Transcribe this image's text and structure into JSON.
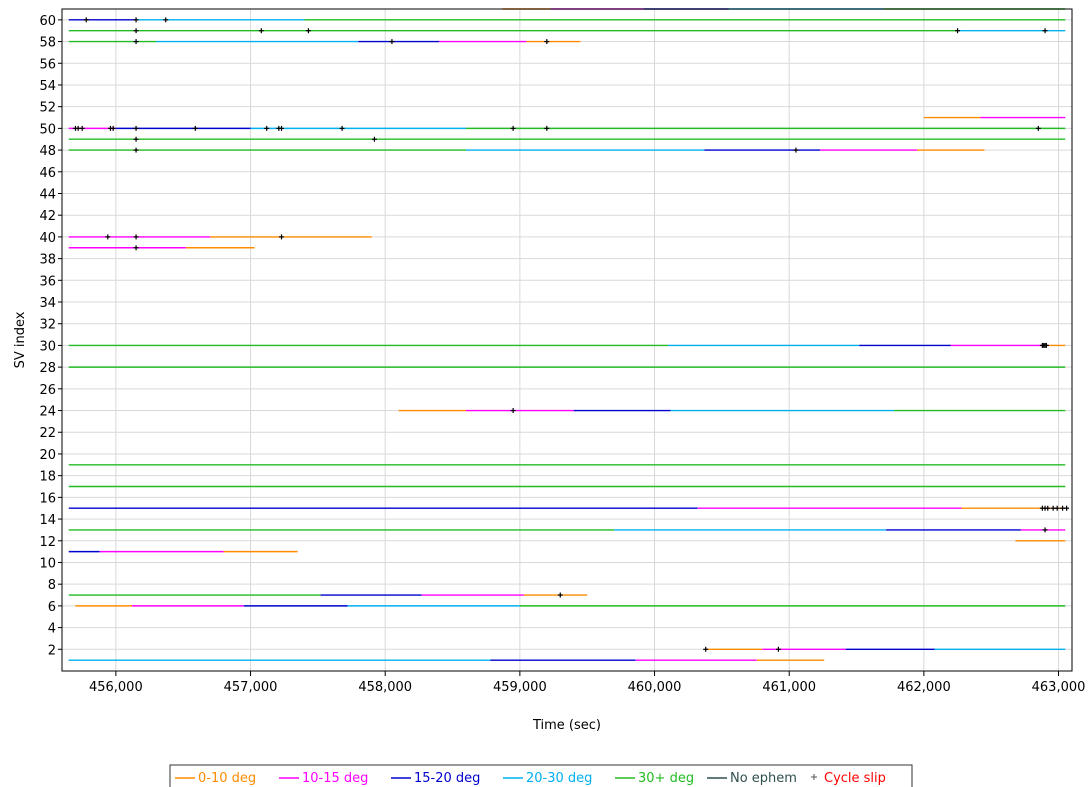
{
  "chart_data": {
    "type": "line",
    "xlabel": "Time (sec)",
    "ylabel": "SV index",
    "xlim": [
      455600,
      463100
    ],
    "ylim": [
      0,
      61
    ],
    "x_ticks": [
      456000,
      457000,
      458000,
      459000,
      460000,
      461000,
      462000,
      463000
    ],
    "x_tick_labels": [
      "456,000",
      "457,000",
      "458,000",
      "459,000",
      "460,000",
      "461,000",
      "462,000",
      "463,000"
    ],
    "y_ticks": [
      2,
      4,
      6,
      8,
      10,
      12,
      14,
      16,
      18,
      20,
      22,
      24,
      26,
      28,
      30,
      32,
      34,
      36,
      38,
      40,
      42,
      44,
      46,
      48,
      50,
      52,
      54,
      56,
      58,
      60
    ],
    "grid": true,
    "legend_position": "bottom",
    "legend": [
      {
        "label": "0-10 deg",
        "color": "#ff8c00",
        "kind": "line"
      },
      {
        "label": "10-15 deg",
        "color": "#ff00ff",
        "kind": "line"
      },
      {
        "label": "15-20 deg",
        "color": "#0000cd",
        "kind": "line"
      },
      {
        "label": "20-30 deg",
        "color": "#00b0f0",
        "kind": "line"
      },
      {
        "label": "30+ deg",
        "color": "#22bb22",
        "kind": "line"
      },
      {
        "label": "No ephem",
        "color": "#2f4f4f",
        "kind": "line"
      },
      {
        "label": "Cycle slip",
        "color": "#ff0000",
        "kind": "marker"
      }
    ],
    "series": [
      {
        "sv": 61,
        "segments": [
          [
            458870,
            459230,
            "0-10 deg"
          ],
          [
            459230,
            459920,
            "10-15 deg"
          ],
          [
            459920,
            460550,
            "15-20 deg"
          ],
          [
            460550,
            461700,
            "20-30 deg"
          ],
          [
            461700,
            463050,
            "30+ deg"
          ]
        ],
        "slips": []
      },
      {
        "sv": 60,
        "segments": [
          [
            455650,
            456150,
            "15-20 deg"
          ],
          [
            456150,
            457400,
            "20-30 deg"
          ],
          [
            457400,
            463050,
            "30+ deg"
          ]
        ],
        "slips": [
          455780,
          456150,
          456370
        ]
      },
      {
        "sv": 59,
        "segments": [
          [
            455650,
            462250,
            "30+ deg"
          ],
          [
            462250,
            463050,
            "20-30 deg"
          ]
        ],
        "slips": [
          456150,
          457080,
          457430,
          462250,
          462900
        ]
      },
      {
        "sv": 58,
        "segments": [
          [
            455650,
            456300,
            "30+ deg"
          ],
          [
            456300,
            457800,
            "20-30 deg"
          ],
          [
            457800,
            458400,
            "15-20 deg"
          ],
          [
            458400,
            459050,
            "10-15 deg"
          ],
          [
            459050,
            459450,
            "0-10 deg"
          ]
        ],
        "slips": [
          456150,
          458050,
          459200
        ]
      },
      {
        "sv": 51,
        "segments": [
          [
            462000,
            462420,
            "0-10 deg"
          ],
          [
            462420,
            463050,
            "10-15 deg"
          ]
        ],
        "slips": []
      },
      {
        "sv": 50,
        "segments": [
          [
            455650,
            456000,
            "10-15 deg"
          ],
          [
            456000,
            457000,
            "15-20 deg"
          ],
          [
            457000,
            458600,
            "20-30 deg"
          ],
          [
            458600,
            463050,
            "30+ deg"
          ]
        ],
        "slips": [
          455700,
          455720,
          455750,
          455960,
          455980,
          456150,
          456590,
          457120,
          457210,
          457230,
          457680,
          458950,
          459200,
          462850
        ]
      },
      {
        "sv": 49,
        "segments": [
          [
            455650,
            463050,
            "30+ deg"
          ]
        ],
        "slips": [
          456150,
          457920
        ]
      },
      {
        "sv": 48,
        "segments": [
          [
            455650,
            458600,
            "30+ deg"
          ],
          [
            458600,
            460370,
            "20-30 deg"
          ],
          [
            460370,
            461230,
            "15-20 deg"
          ],
          [
            461230,
            461950,
            "10-15 deg"
          ],
          [
            461950,
            462450,
            "0-10 deg"
          ]
        ],
        "slips": [
          456150,
          461050
        ]
      },
      {
        "sv": 40,
        "segments": [
          [
            455650,
            456700,
            "10-15 deg"
          ],
          [
            456700,
            457900,
            "0-10 deg"
          ]
        ],
        "slips": [
          455940,
          456150,
          457230
        ]
      },
      {
        "sv": 39,
        "segments": [
          [
            455650,
            456520,
            "10-15 deg"
          ],
          [
            456520,
            457030,
            "0-10 deg"
          ]
        ],
        "slips": [
          456150
        ]
      },
      {
        "sv": 30,
        "segments": [
          [
            455650,
            460100,
            "30+ deg"
          ],
          [
            460100,
            461520,
            "20-30 deg"
          ],
          [
            461520,
            462200,
            "15-20 deg"
          ],
          [
            462200,
            462900,
            "10-15 deg"
          ],
          [
            462900,
            463050,
            "0-10 deg"
          ]
        ],
        "slips": [
          462880,
          462890,
          462900,
          462910
        ]
      },
      {
        "sv": 28,
        "segments": [
          [
            455650,
            463050,
            "30+ deg"
          ]
        ],
        "slips": []
      },
      {
        "sv": 24,
        "segments": [
          [
            458100,
            458600,
            "0-10 deg"
          ],
          [
            458600,
            459400,
            "10-15 deg"
          ],
          [
            459400,
            460120,
            "15-20 deg"
          ],
          [
            460120,
            461780,
            "20-30 deg"
          ],
          [
            461780,
            463050,
            "30+ deg"
          ]
        ],
        "slips": [
          458950
        ]
      },
      {
        "sv": 19,
        "segments": [
          [
            455650,
            463050,
            "30+ deg"
          ]
        ],
        "slips": []
      },
      {
        "sv": 17,
        "segments": [
          [
            455650,
            463050,
            "30+ deg"
          ]
        ],
        "slips": []
      },
      {
        "sv": 15,
        "segments": [
          [
            455650,
            460320,
            "15-20 deg"
          ],
          [
            460320,
            462280,
            "10-15 deg"
          ],
          [
            462280,
            463050,
            "0-10 deg"
          ]
        ],
        "slips": [
          462880,
          462900,
          462920,
          462960,
          462990,
          463030,
          463060
        ]
      },
      {
        "sv": 13,
        "segments": [
          [
            455650,
            459700,
            "30+ deg"
          ],
          [
            459700,
            461720,
            "20-30 deg"
          ],
          [
            461720,
            462720,
            "15-20 deg"
          ],
          [
            462720,
            463050,
            "10-15 deg"
          ]
        ],
        "slips": [
          462900
        ]
      },
      {
        "sv": 12,
        "segments": [
          [
            462680,
            463050,
            "0-10 deg"
          ]
        ],
        "slips": []
      },
      {
        "sv": 11,
        "segments": [
          [
            455650,
            455880,
            "15-20 deg"
          ],
          [
            455880,
            456800,
            "10-15 deg"
          ],
          [
            456800,
            457350,
            "0-10 deg"
          ]
        ],
        "slips": []
      },
      {
        "sv": 7,
        "segments": [
          [
            455650,
            457520,
            "30+ deg"
          ],
          [
            457520,
            458270,
            "15-20 deg"
          ],
          [
            458270,
            459030,
            "10-15 deg"
          ],
          [
            459030,
            459500,
            "0-10 deg"
          ]
        ],
        "slips": [
          459300
        ]
      },
      {
        "sv": 6,
        "segments": [
          [
            455700,
            456120,
            "0-10 deg"
          ],
          [
            456120,
            456950,
            "10-15 deg"
          ],
          [
            456950,
            457720,
            "15-20 deg"
          ],
          [
            457720,
            459000,
            "20-30 deg"
          ],
          [
            459000,
            463050,
            "30+ deg"
          ]
        ],
        "slips": []
      },
      {
        "sv": 2,
        "segments": [
          [
            460380,
            460800,
            "0-10 deg"
          ],
          [
            460800,
            461420,
            "10-15 deg"
          ],
          [
            461420,
            462080,
            "15-20 deg"
          ],
          [
            462080,
            463050,
            "20-30 deg"
          ]
        ],
        "slips": [
          460380,
          460920
        ]
      },
      {
        "sv": 1,
        "segments": [
          [
            455650,
            458780,
            "20-30 deg"
          ],
          [
            458780,
            459860,
            "15-20 deg"
          ],
          [
            459860,
            460760,
            "10-15 deg"
          ],
          [
            460760,
            461260,
            "0-10 deg"
          ]
        ],
        "slips": []
      }
    ]
  }
}
